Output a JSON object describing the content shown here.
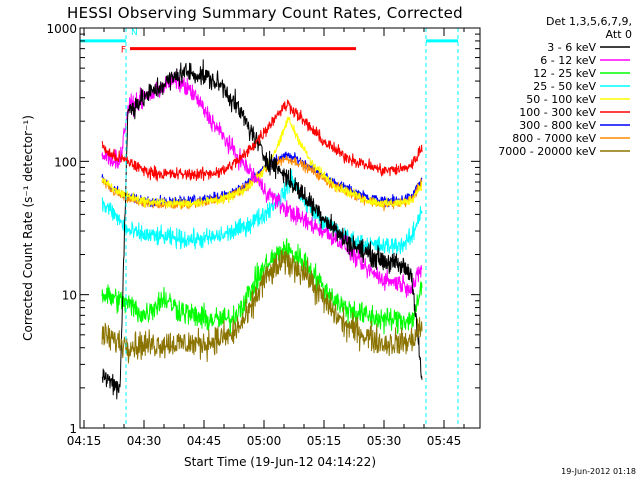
{
  "chart_data": {
    "type": "line",
    "title": "HESSI Observing Summary Count Rates, Corrected",
    "xlabel": "Start Time (19-Jun-12 04:14:22)",
    "ylabel": "Corrected Count Rate (s⁻¹ detector⁻¹)",
    "xlim": [
      14.0,
      114.0
    ],
    "ylim": [
      1,
      1000
    ],
    "y_scale": "log",
    "x_ticks": [
      {
        "label": "04:15",
        "value": 15
      },
      {
        "label": "04:30",
        "value": 30
      },
      {
        "label": "04:45",
        "value": 45
      },
      {
        "label": "05:00",
        "value": 60
      },
      {
        "label": "05:15",
        "value": 75
      },
      {
        "label": "05:30",
        "value": 90
      },
      {
        "label": "05:45",
        "value": 105
      }
    ],
    "y_ticks": [
      {
        "label": "1",
        "value": 1
      },
      {
        "label": "10",
        "value": 10
      },
      {
        "label": "100",
        "value": 100
      },
      {
        "label": "1000",
        "value": 1000
      }
    ],
    "grid": false,
    "legend_position": "outside-right",
    "legend_header": [
      "Det 1,3,5,6,7,9,",
      "Att 0"
    ],
    "time_unit": "minutes after 04:00 (19-Jun-12)",
    "data_window": [
      19.5,
      99.5
    ],
    "series": [
      {
        "name": "3 - 6 keV",
        "color": "#000000",
        "noise": 0.07,
        "points": [
          [
            19.5,
            2.5
          ],
          [
            22,
            2.2
          ],
          [
            24,
            2.0
          ],
          [
            26,
            240
          ],
          [
            30,
            300
          ],
          [
            35,
            380
          ],
          [
            40,
            470
          ],
          [
            45,
            440
          ],
          [
            50,
            360
          ],
          [
            55,
            210
          ],
          [
            60,
            110
          ],
          [
            65,
            80
          ],
          [
            70,
            55
          ],
          [
            75,
            38
          ],
          [
            80,
            26
          ],
          [
            85,
            21
          ],
          [
            90,
            18
          ],
          [
            95,
            16
          ],
          [
            97,
            14
          ],
          [
            99.5,
            2.2
          ]
        ]
      },
      {
        "name": "6 - 12 keV",
        "color": "#ff00ff",
        "noise": 0.06,
        "points": [
          [
            19.5,
            110
          ],
          [
            22,
            105
          ],
          [
            24,
            100
          ],
          [
            26,
            250
          ],
          [
            30,
            300
          ],
          [
            35,
            370
          ],
          [
            38,
            410
          ],
          [
            42,
            330
          ],
          [
            46,
            220
          ],
          [
            50,
            150
          ],
          [
            55,
            95
          ],
          [
            60,
            62
          ],
          [
            65,
            45
          ],
          [
            70,
            36
          ],
          [
            75,
            30
          ],
          [
            80,
            24
          ],
          [
            85,
            16
          ],
          [
            90,
            13
          ],
          [
            95,
            12
          ],
          [
            97,
            11
          ],
          [
            99.5,
            16
          ]
        ]
      },
      {
        "name": "12 - 25 keV",
        "color": "#00ff00",
        "noise": 0.08,
        "points": [
          [
            19.5,
            10
          ],
          [
            22,
            9.5
          ],
          [
            26,
            8.5
          ],
          [
            30,
            7
          ],
          [
            35,
            9.5
          ],
          [
            38,
            8
          ],
          [
            42,
            7
          ],
          [
            46,
            6.5
          ],
          [
            52,
            6.5
          ],
          [
            56,
            10
          ],
          [
            60,
            16
          ],
          [
            65,
            22
          ],
          [
            70,
            18
          ],
          [
            75,
            11
          ],
          [
            80,
            8
          ],
          [
            85,
            7
          ],
          [
            90,
            6.5
          ],
          [
            95,
            6.5
          ],
          [
            97,
            6.5
          ],
          [
            99.5,
            11
          ]
        ]
      },
      {
        "name": "25 - 50 keV",
        "color": "#00ffff",
        "noise": 0.06,
        "points": [
          [
            19.5,
            48
          ],
          [
            22,
            42
          ],
          [
            26,
            30
          ],
          [
            30,
            28
          ],
          [
            35,
            27
          ],
          [
            40,
            26
          ],
          [
            45,
            26
          ],
          [
            50,
            28
          ],
          [
            55,
            32
          ],
          [
            60,
            40
          ],
          [
            65,
            58
          ],
          [
            67,
            75
          ],
          [
            70,
            50
          ],
          [
            75,
            35
          ],
          [
            80,
            27
          ],
          [
            85,
            24
          ],
          [
            90,
            23
          ],
          [
            95,
            24
          ],
          [
            97,
            27
          ],
          [
            99.5,
            45
          ]
        ]
      },
      {
        "name": "50 - 100 keV",
        "color": "#ffff00",
        "noise": 0.03,
        "points": [
          [
            19.5,
            75
          ],
          [
            22,
            62
          ],
          [
            26,
            55
          ],
          [
            30,
            50
          ],
          [
            40,
            48
          ],
          [
            50,
            52
          ],
          [
            55,
            60
          ],
          [
            60,
            85
          ],
          [
            64,
            140
          ],
          [
            66,
            210
          ],
          [
            68,
            160
          ],
          [
            72,
            95
          ],
          [
            78,
            65
          ],
          [
            85,
            52
          ],
          [
            90,
            48
          ],
          [
            95,
            49
          ],
          [
            97,
            52
          ],
          [
            99.5,
            68
          ]
        ]
      },
      {
        "name": "100 - 300 keV",
        "color": "#ff0000",
        "noise": 0.04,
        "points": [
          [
            19.5,
            130
          ],
          [
            22,
            110
          ],
          [
            26,
            100
          ],
          [
            30,
            85
          ],
          [
            35,
            80
          ],
          [
            45,
            80
          ],
          [
            50,
            85
          ],
          [
            55,
            110
          ],
          [
            60,
            165
          ],
          [
            64,
            240
          ],
          [
            66,
            270
          ],
          [
            70,
            200
          ],
          [
            75,
            140
          ],
          [
            80,
            110
          ],
          [
            85,
            95
          ],
          [
            90,
            85
          ],
          [
            95,
            88
          ],
          [
            97,
            95
          ],
          [
            99.5,
            125
          ]
        ]
      },
      {
        "name": "300 - 800 keV",
        "color": "#0000ff",
        "noise": 0.03,
        "points": [
          [
            19.5,
            75
          ],
          [
            22,
            62
          ],
          [
            26,
            55
          ],
          [
            30,
            50
          ],
          [
            40,
            50
          ],
          [
            50,
            55
          ],
          [
            55,
            65
          ],
          [
            60,
            90
          ],
          [
            65,
            110
          ],
          [
            68,
            105
          ],
          [
            72,
            90
          ],
          [
            78,
            68
          ],
          [
            85,
            55
          ],
          [
            90,
            50
          ],
          [
            95,
            52
          ],
          [
            97,
            55
          ],
          [
            99.5,
            72
          ]
        ]
      },
      {
        "name": "800 - 7000 keV",
        "color": "#ff8c00",
        "noise": 0.03,
        "points": [
          [
            19.5,
            72
          ],
          [
            22,
            60
          ],
          [
            26,
            52
          ],
          [
            30,
            48
          ],
          [
            40,
            47
          ],
          [
            50,
            52
          ],
          [
            55,
            62
          ],
          [
            60,
            85
          ],
          [
            65,
            105
          ],
          [
            68,
            100
          ],
          [
            72,
            85
          ],
          [
            78,
            64
          ],
          [
            85,
            52
          ],
          [
            90,
            47
          ],
          [
            95,
            49
          ],
          [
            97,
            52
          ],
          [
            99.5,
            70
          ]
        ]
      },
      {
        "name": "7000 - 20000 keV",
        "color": "#8b7300",
        "noise": 0.09,
        "points": [
          [
            19.5,
            5
          ],
          [
            22,
            4.6
          ],
          [
            26,
            4.2
          ],
          [
            30,
            4.2
          ],
          [
            35,
            4.3
          ],
          [
            45,
            4.3
          ],
          [
            52,
            5
          ],
          [
            56,
            7
          ],
          [
            60,
            13
          ],
          [
            65,
            18
          ],
          [
            70,
            15
          ],
          [
            75,
            9
          ],
          [
            80,
            6
          ],
          [
            85,
            5
          ],
          [
            90,
            4.3
          ],
          [
            95,
            4.4
          ],
          [
            97,
            4.5
          ],
          [
            99.5,
            6
          ]
        ]
      }
    ],
    "annotations": [
      {
        "label": "F",
        "color": "#ff0000",
        "kind": "flare flag",
        "x_start": 26.5,
        "x_end": 83.0,
        "y": 700
      },
      {
        "label": "N",
        "color": "#00ffff",
        "kind": "night",
        "intervals": [
          [
            14.0,
            25.5
          ],
          [
            100.5,
            108.5
          ]
        ],
        "y": 800
      }
    ]
  },
  "timestamp": "19-Jun-2012 01:18"
}
